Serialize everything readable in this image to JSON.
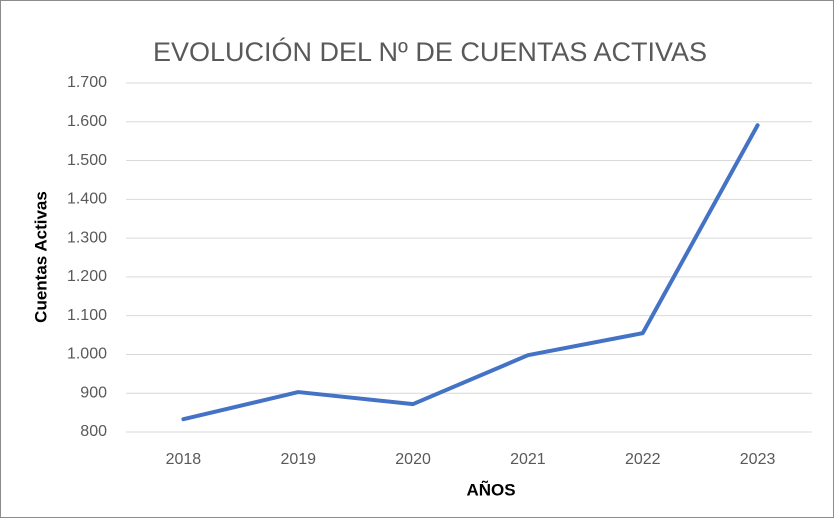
{
  "chart_data": {
    "type": "line",
    "title": "EVOLUCIÓN DEL Nº DE CUENTAS ACTIVAS",
    "x_label": "AÑOS",
    "y_label": "Cuentas Activas",
    "categories": [
      "2018",
      "2019",
      "2020",
      "2021",
      "2022",
      "2023"
    ],
    "series": [
      {
        "name": "Cuentas Activas",
        "color": "#4472c4",
        "values": [
          833,
          903,
          872,
          998,
          1055,
          1591
        ]
      }
    ],
    "ylim": [
      800,
      1700
    ],
    "yticks": [
      800,
      900,
      {
        "value": 1000,
        "label": "1.000"
      },
      {
        "value": 1100,
        "label": "1.100"
      },
      {
        "value": 1200,
        "label": "1.200"
      },
      {
        "value": 1300,
        "label": "1.300"
      },
      {
        "value": 1400,
        "label": "1.400"
      },
      {
        "value": 1500,
        "label": "1.500"
      },
      {
        "value": 1600,
        "label": "1.600"
      },
      {
        "value": 1700,
        "label": "1.700"
      }
    ],
    "grid": true
  }
}
